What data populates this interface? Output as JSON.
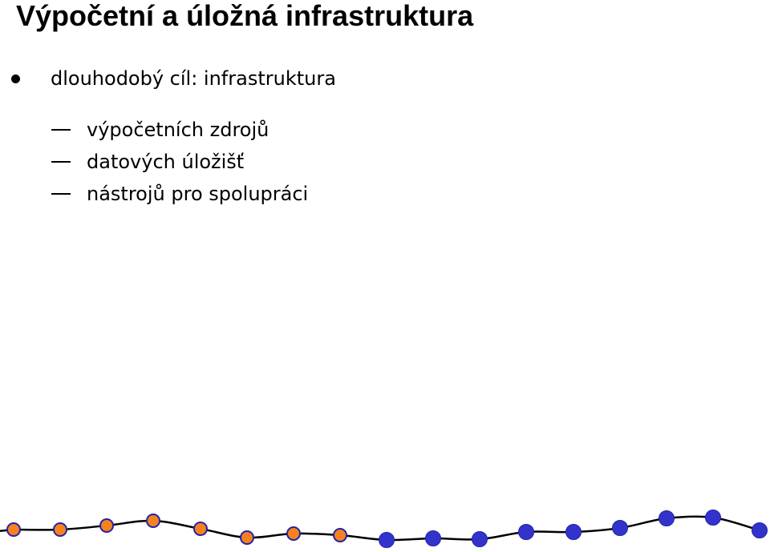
{
  "slide": {
    "title": "Výpočetní a úložná infrastruktura",
    "bullet": "dlouhodobý cíl: infrastruktura",
    "subitems": [
      "výpočetních zdrojů",
      "datových úložišť",
      "nástrojů pro spolupráci"
    ]
  },
  "decoration": {
    "line_color": "#000000",
    "orange_fill": "#f5821f",
    "blue_fill": "#3333cc",
    "dot_outline": "#2222aa",
    "dots": [
      {
        "color": "orange"
      },
      {
        "color": "orange"
      },
      {
        "color": "orange"
      },
      {
        "color": "orange"
      },
      {
        "color": "orange"
      },
      {
        "color": "orange"
      },
      {
        "color": "orange"
      },
      {
        "color": "orange"
      },
      {
        "color": "blue"
      },
      {
        "color": "blue"
      },
      {
        "color": "blue"
      },
      {
        "color": "blue"
      },
      {
        "color": "blue"
      },
      {
        "color": "blue"
      },
      {
        "color": "blue"
      },
      {
        "color": "blue"
      },
      {
        "color": "blue"
      }
    ]
  }
}
